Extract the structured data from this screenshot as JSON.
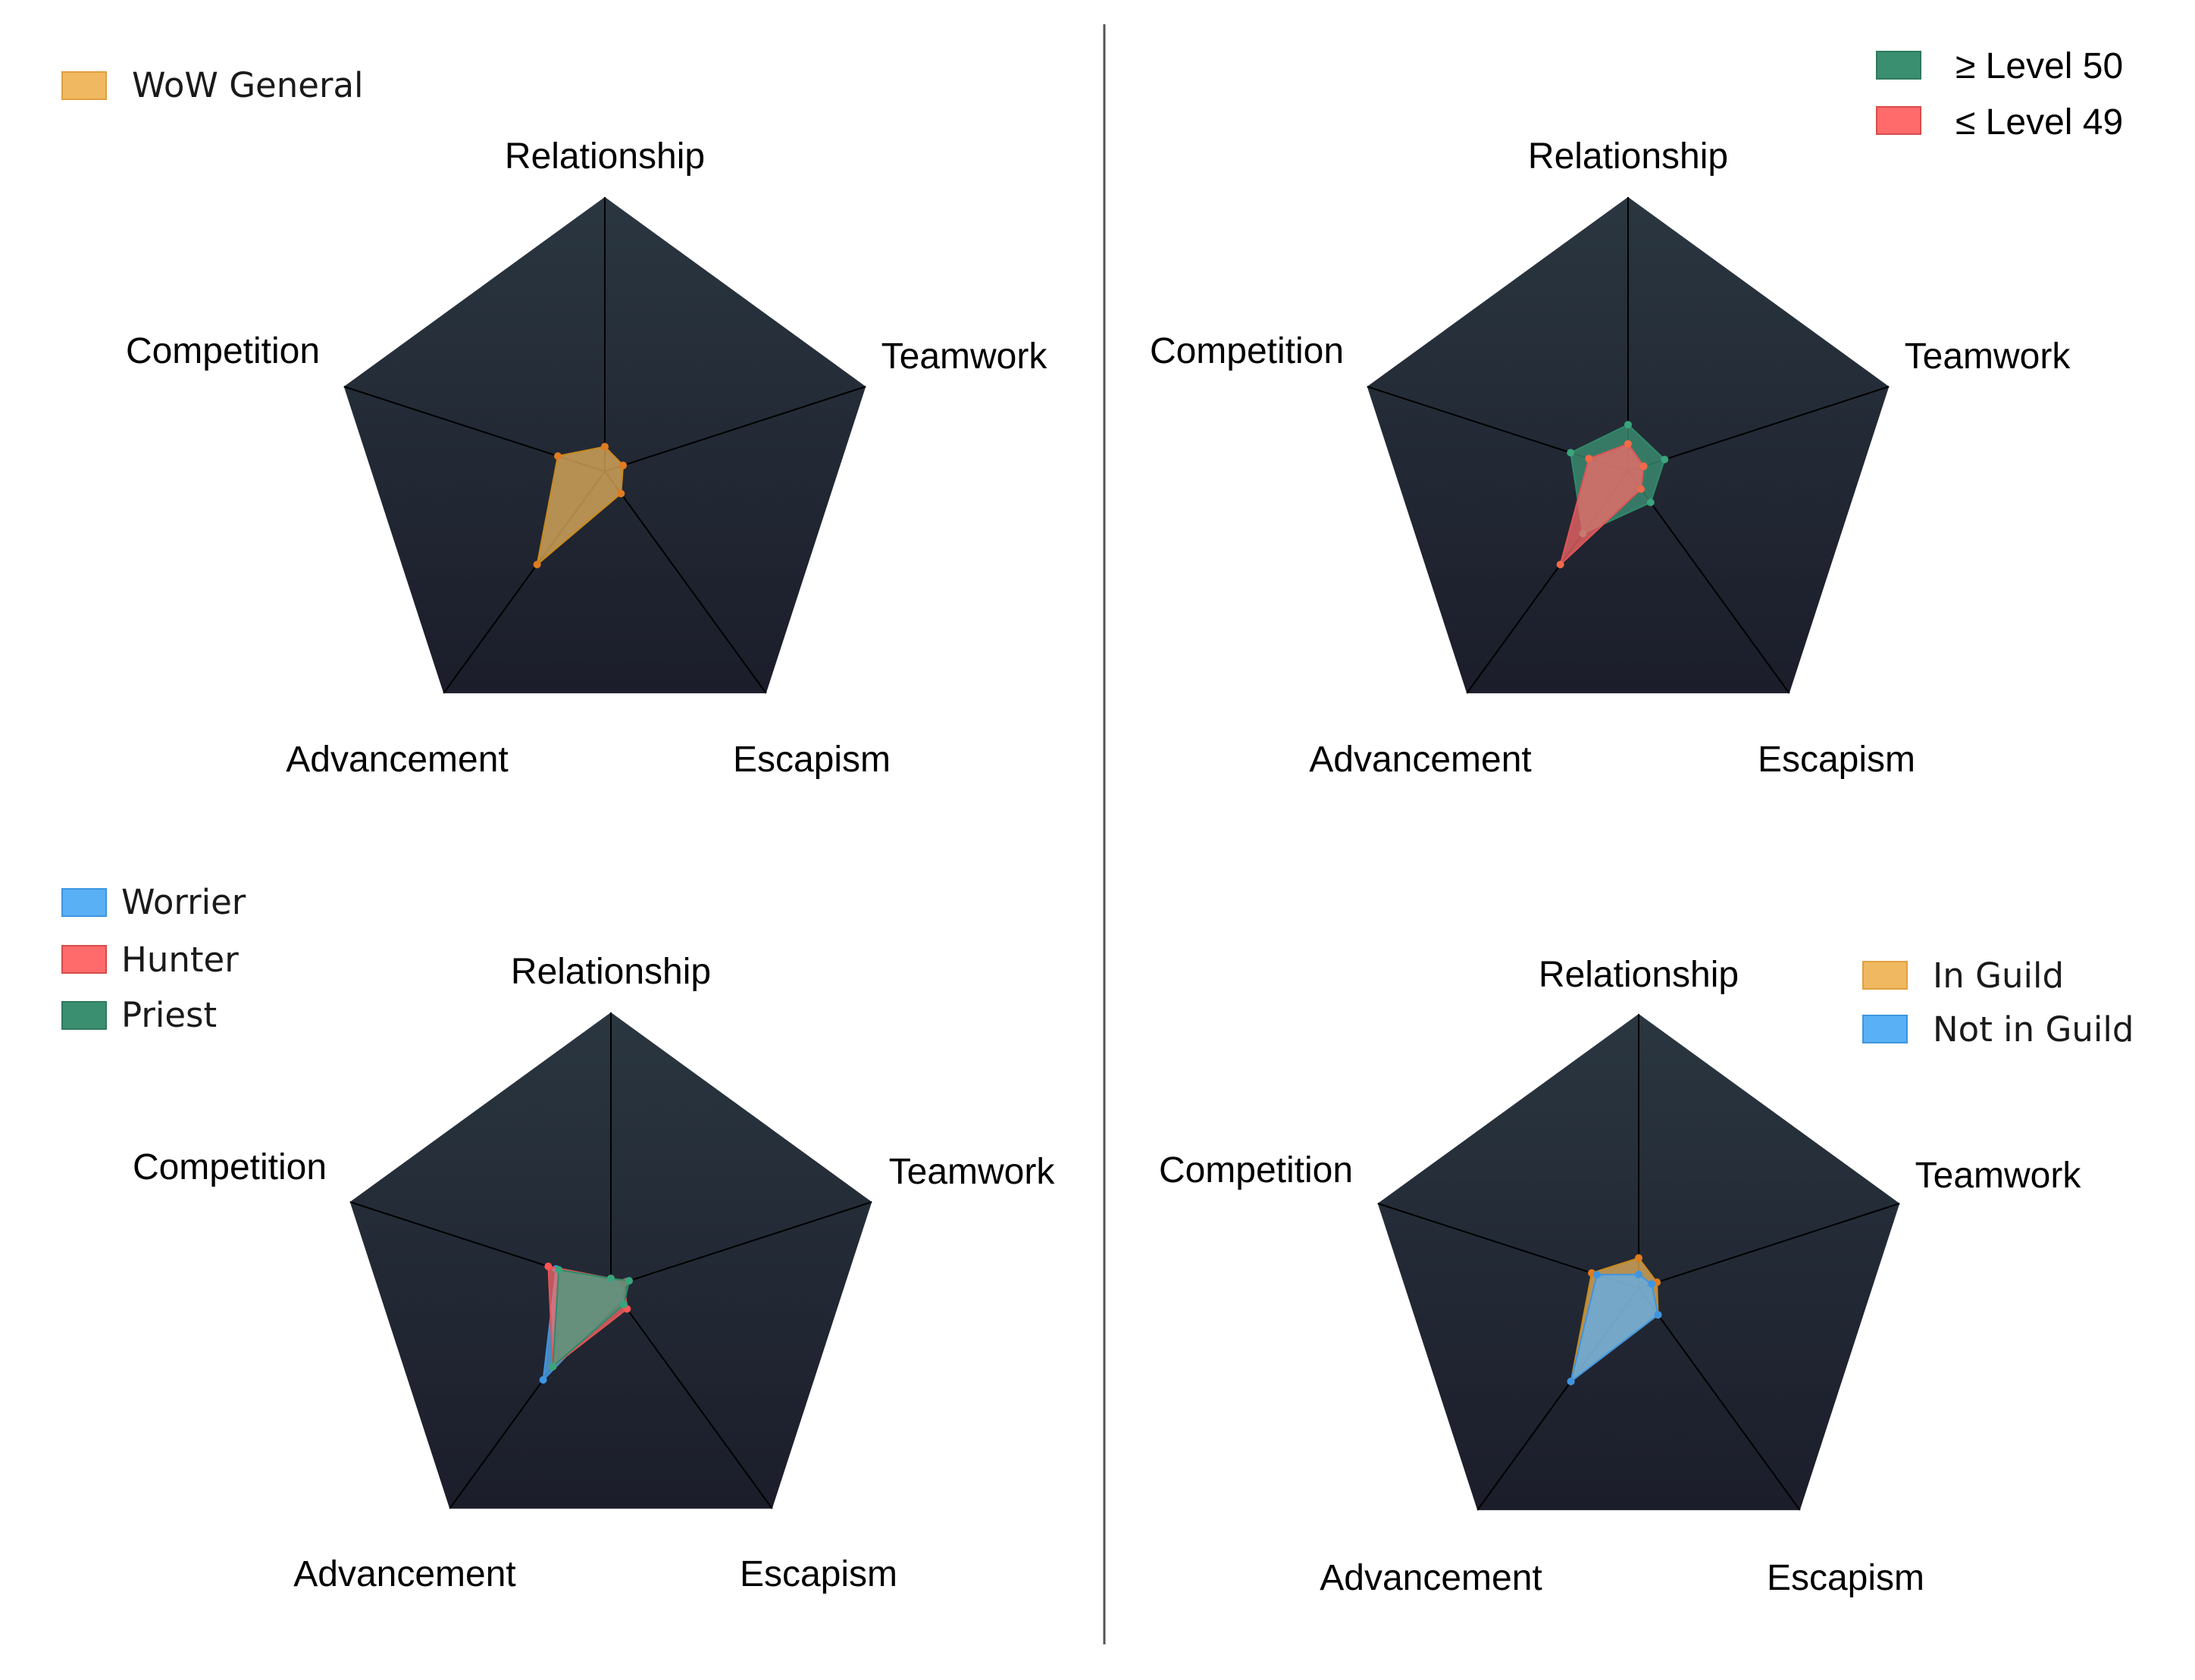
{
  "colors": {
    "panel_top": "#2a3640",
    "panel_bottom": "#1b1d2a",
    "spoke": "#000000",
    "divider": "#555555"
  },
  "chart_data": [
    {
      "type": "radar",
      "axes": [
        "Relationship",
        "Teamwork",
        "Escapism",
        "Advancement",
        "Competition"
      ],
      "scale": [
        0,
        1
      ],
      "legend_position": "top-left",
      "series": [
        {
          "name": "WoW General",
          "color": "#f0b860",
          "stroke": "#c98a1e",
          "point": "#e07b20",
          "values": [
            0.09,
            0.07,
            0.1,
            0.42,
            0.18
          ]
        }
      ]
    },
    {
      "type": "radar",
      "axes": [
        "Relationship",
        "Teamwork",
        "Escapism",
        "Advancement",
        "Competition"
      ],
      "scale": [
        0,
        1
      ],
      "legend_position": "top-right",
      "series": [
        {
          "name": "≥ Level 50",
          "color": "#3e9a7a",
          "stroke": "#2f8a68",
          "point": "#3aa47c",
          "values": [
            0.17,
            0.14,
            0.14,
            0.28,
            0.22
          ]
        },
        {
          "name": "≤ Level 49",
          "color": "#ff6b6b",
          "stroke": "#e05555",
          "point": "#f06a4a",
          "values": [
            0.1,
            0.06,
            0.08,
            0.42,
            0.15
          ]
        }
      ]
    },
    {
      "type": "radar",
      "axes": [
        "Relationship",
        "Teamwork",
        "Escapism",
        "Advancement",
        "Competition"
      ],
      "scale": [
        0,
        1
      ],
      "legend_position": "top-left",
      "series": [
        {
          "name": "Worrier",
          "color": "#5ab0f5",
          "stroke": "#3d95e0",
          "point": "#3d95e0",
          "values": [
            0.02,
            0.06,
            0.06,
            0.42,
            0.21
          ]
        },
        {
          "name": "Hunter",
          "color": "#ff6b6b",
          "stroke": "#e05555",
          "point": "#ff5555",
          "values": [
            0.03,
            0.05,
            0.1,
            0.36,
            0.24
          ]
        },
        {
          "name": "Priest",
          "color": "#3e9a7a",
          "stroke": "#2f8a68",
          "point": "#3aa47c",
          "values": [
            0.03,
            0.07,
            0.08,
            0.36,
            0.2
          ]
        }
      ]
    },
    {
      "type": "radar",
      "axes": [
        "Relationship",
        "Teamwork",
        "Escapism",
        "Advancement",
        "Competition"
      ],
      "scale": [
        0,
        1
      ],
      "legend_position": "top-right",
      "series": [
        {
          "name": "In Guild",
          "color": "#f0b860",
          "stroke": "#c98a1e",
          "point": "#e07b20",
          "values": [
            0.11,
            0.07,
            0.12,
            0.42,
            0.18
          ]
        },
        {
          "name": "Not in Guild",
          "color": "#5ab0f5",
          "stroke": "#3d95e0",
          "point": "#3d95e0",
          "values": [
            0.05,
            0.05,
            0.12,
            0.42,
            0.16
          ]
        }
      ]
    }
  ]
}
